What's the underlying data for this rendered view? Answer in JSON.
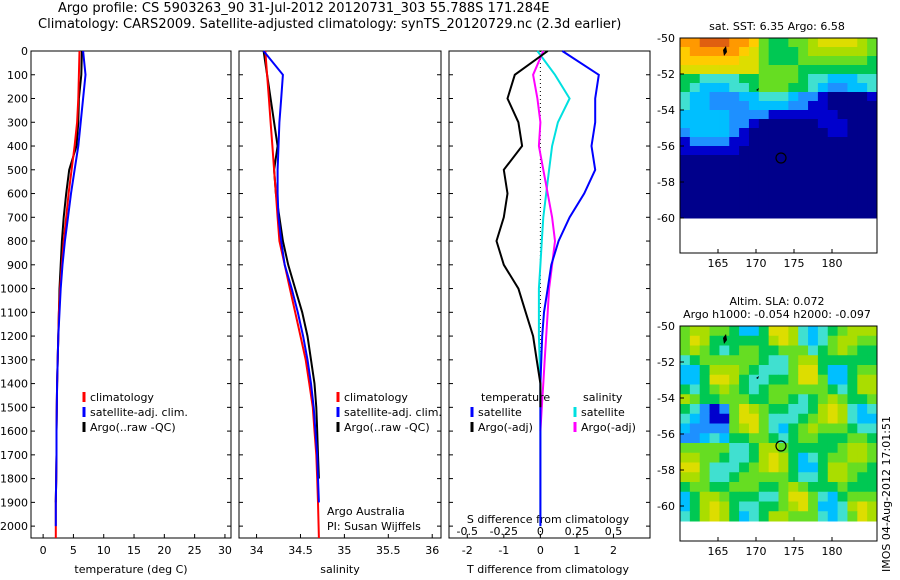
{
  "title": {
    "line1": "Argo profile: CS 5903263_90 31-Jul-2012 20120731_303 55.788S 171.284E",
    "line2": "Climatology: CARS2009. Satellite-adjusted climatology: synTS_20120729.nc (2.3d earlier)"
  },
  "depth_ticks": [
    "0",
    "100",
    "200",
    "300",
    "400",
    "500",
    "600",
    "700",
    "800",
    "900",
    "1000",
    "1100",
    "1200",
    "1300",
    "1400",
    "1500",
    "1600",
    "1700",
    "1800",
    "1900",
    "2000"
  ],
  "colors": {
    "climatology": "#ff0000",
    "satellite": "#0000ff",
    "argo": "#000000",
    "sat_salinity": "#00e0e0",
    "argo_salinity": "#ff00ff"
  },
  "panels": {
    "temperature": {
      "xlabel": "temperature (deg C)",
      "xticks": [
        "0",
        "5",
        "10",
        "15",
        "20",
        "25",
        "30"
      ],
      "legend": [
        "climatology",
        "satellite-adj. clim.",
        "Argo(..raw -QC)"
      ]
    },
    "salinity": {
      "xlabel": "salinity",
      "xticks": [
        "34",
        "34.5",
        "35",
        "35.5",
        "36"
      ],
      "legend": [
        "climatology",
        "satellite-adj. clim.",
        "Argo(..raw -QC)"
      ],
      "note1": "Argo Australia",
      "note2": "PI: Susan Wijffels"
    },
    "difference": {
      "xlabel": "T difference from climatology",
      "top_label": "S difference from climatology",
      "top_ticks": [
        "-0.5",
        "-0.25",
        "0",
        "0.25",
        "0.5"
      ],
      "xticks": [
        "-2",
        "-1",
        "0",
        "1",
        "2"
      ],
      "legend_temp_head": "temperature",
      "legend_temp": [
        "satellite",
        "Argo(-adj)"
      ],
      "legend_sal_head": "salinity",
      "legend_sal": [
        "satellite",
        "Argo(-adj)"
      ]
    }
  },
  "maps": {
    "sst": {
      "title": "sat. SST: 6.35 Argo: 6.58",
      "yticks": [
        "-50",
        "-52",
        "-54",
        "-56",
        "-58",
        "-60"
      ],
      "xticks": [
        "165",
        "170",
        "175",
        "180"
      ]
    },
    "sla": {
      "title1": "Altim. SLA: 0.072",
      "title2": "Argo h1000: -0.054 h2000: -0.097",
      "yticks": [
        "-50",
        "-52",
        "-54",
        "-56",
        "-58",
        "-60"
      ],
      "xticks": [
        "165",
        "170",
        "175",
        "180"
      ]
    }
  },
  "stamp": "IMOS 04-Aug-2012 17:01:51",
  "chart_data": [
    {
      "type": "line",
      "title": "",
      "xlabel": "temperature (deg C)",
      "ylabel": "",
      "xlim": [
        -2,
        31
      ],
      "ylim": [
        2050,
        0
      ],
      "series": [
        {
          "name": "climatology",
          "x": [
            6.0,
            5.9,
            5.8,
            5.6,
            5.2,
            4.7,
            4.2,
            3.8,
            3.4,
            3.1,
            2.8,
            2.6,
            2.5,
            2.4,
            2.3,
            2.25,
            2.2,
            2.2,
            2.15,
            2.1,
            2.1
          ],
          "y": [
            0,
            100,
            200,
            300,
            400,
            500,
            600,
            700,
            800,
            900,
            1000,
            1100,
            1200,
            1300,
            1400,
            1500,
            1600,
            1700,
            1800,
            1900,
            2050
          ]
        },
        {
          "name": "satellite-adj. clim.",
          "x": [
            6.6,
            7.0,
            6.6,
            6.2,
            5.8,
            5.2,
            4.6,
            4.1,
            3.6,
            3.2,
            2.9,
            2.7,
            2.5,
            2.4,
            2.3,
            2.25,
            2.2,
            2.2,
            2.15,
            2.1,
            2.1
          ],
          "y": [
            0,
            100,
            200,
            300,
            400,
            500,
            600,
            700,
            800,
            900,
            1000,
            1100,
            1200,
            1300,
            1400,
            1500,
            1600,
            1700,
            1800,
            1900,
            2000
          ]
        },
        {
          "name": "Argo(..raw -QC)",
          "x": [
            6.4,
            6.3,
            5.9,
            5.8,
            5.5,
            4.3,
            3.8,
            3.4,
            3.1,
            2.9,
            2.7,
            2.6,
            2.5,
            2.4,
            2.3,
            2.25,
            2.2,
            2.2,
            2.15,
            2.1
          ],
          "y": [
            0,
            100,
            200,
            300,
            400,
            500,
            600,
            700,
            800,
            900,
            1000,
            1100,
            1200,
            1300,
            1400,
            1500,
            1600,
            1700,
            1800,
            1900
          ]
        }
      ]
    },
    {
      "type": "line",
      "title": "",
      "xlabel": "salinity",
      "ylabel": "",
      "xlim": [
        33.8,
        36.1
      ],
      "ylim": [
        2050,
        0
      ],
      "series": [
        {
          "name": "climatology",
          "x": [
            34.1,
            34.12,
            34.14,
            34.16,
            34.18,
            34.2,
            34.22,
            34.24,
            34.26,
            34.32,
            34.38,
            34.44,
            34.5,
            34.56,
            34.6,
            34.64,
            34.66,
            34.68,
            34.69,
            34.7,
            34.71
          ],
          "y": [
            0,
            100,
            200,
            300,
            400,
            500,
            600,
            700,
            800,
            900,
            1000,
            1100,
            1200,
            1300,
            1400,
            1500,
            1600,
            1700,
            1800,
            1900,
            2050
          ]
        },
        {
          "name": "satellite-adj. clim.",
          "x": [
            34.08,
            34.3,
            34.28,
            34.26,
            34.25,
            34.24,
            34.24,
            34.25,
            34.28,
            34.32,
            34.4,
            34.47,
            34.53,
            34.58,
            34.62,
            34.65,
            34.67,
            34.69,
            34.7,
            34.71
          ],
          "y": [
            0,
            100,
            200,
            300,
            400,
            500,
            600,
            700,
            800,
            900,
            1000,
            1100,
            1200,
            1300,
            1400,
            1500,
            1600,
            1700,
            1800,
            1900
          ]
        },
        {
          "name": "Argo(..raw -QC)",
          "x": [
            34.08,
            34.12,
            34.16,
            34.2,
            34.24,
            34.2,
            34.22,
            34.26,
            34.3,
            34.36,
            34.44,
            34.52,
            34.58,
            34.62,
            34.66,
            34.68,
            34.69,
            34.7,
            34.71
          ],
          "y": [
            0,
            100,
            200,
            300,
            400,
            500,
            600,
            700,
            800,
            900,
            1000,
            1100,
            1200,
            1300,
            1400,
            1500,
            1600,
            1700,
            1800
          ]
        }
      ]
    },
    {
      "type": "line",
      "title": "",
      "xlabel": "T difference from climatology",
      "ylabel": "",
      "xlim": [
        -2.5,
        3.0
      ],
      "ylim": [
        2050,
        0
      ],
      "series": [
        {
          "name": "satellite",
          "x": [
            0.6,
            1.6,
            1.5,
            1.5,
            1.4,
            1.5,
            1.2,
            0.8,
            0.5,
            0.3,
            0.2,
            0.1,
            0.05,
            0.0,
            0.0,
            0.0,
            0.0
          ],
          "y": [
            0,
            100,
            200,
            300,
            400,
            500,
            600,
            700,
            800,
            900,
            1000,
            1100,
            1200,
            1400,
            1600,
            1800,
            2000
          ]
        },
        {
          "name": "Argo(-adj)",
          "x": [
            0.2,
            -0.7,
            -0.9,
            -0.6,
            -0.5,
            -1.0,
            -0.9,
            -1.0,
            -1.2,
            -1.0,
            -0.6,
            -0.4,
            -0.2,
            -0.1,
            0.0,
            0.0
          ],
          "y": [
            0,
            100,
            200,
            300,
            400,
            500,
            600,
            700,
            800,
            900,
            1000,
            1100,
            1200,
            1300,
            1400,
            1500
          ]
        }
      ]
    },
    {
      "type": "line",
      "title": "",
      "xlabel": "S difference from climatology",
      "ylabel": "",
      "xlim": [
        -0.625,
        0.75
      ],
      "ylim": [
        2050,
        0
      ],
      "series": [
        {
          "name": "satellite",
          "x": [
            -0.02,
            0.1,
            0.2,
            0.12,
            0.08,
            0.06,
            0.04,
            0.02,
            0.01,
            0.0,
            -0.01,
            -0.01,
            0.0,
            0.0,
            0.0,
            0.0
          ],
          "y": [
            0,
            100,
            200,
            300,
            400,
            500,
            600,
            700,
            800,
            900,
            1000,
            1200,
            1400,
            1600,
            1800,
            2000
          ]
        },
        {
          "name": "Argo(-adj)",
          "x": [
            0.02,
            -0.05,
            -0.02,
            0.0,
            -0.01,
            0.02,
            0.05,
            0.08,
            0.1,
            0.08,
            0.06,
            0.05,
            0.04,
            0.03,
            0.02,
            0.01,
            0.0
          ],
          "y": [
            0,
            100,
            200,
            300,
            400,
            500,
            600,
            700,
            800,
            900,
            1000,
            1100,
            1200,
            1300,
            1400,
            1500,
            1600
          ]
        }
      ]
    }
  ]
}
